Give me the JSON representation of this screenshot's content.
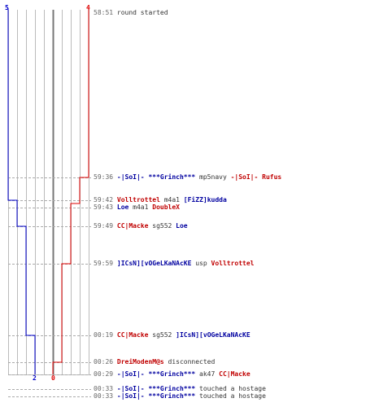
{
  "scores": {
    "top_blue": "5",
    "top_red": "4",
    "bottom_blue": "2",
    "bottom_red": "0"
  },
  "colors": {
    "blue_team": "#0000cc",
    "red_team": "#dd0000",
    "grid": "#bbbbbb",
    "dash": "#aaaaaa",
    "center": "#777777"
  },
  "events": [
    {
      "time": "58:51",
      "parts": [
        {
          "t": "round started",
          "c": "plain"
        }
      ]
    },
    {
      "time": "59:36",
      "parts": [
        {
          "t": "-|SoI|- ***Grinch***",
          "c": "blue"
        },
        {
          "t": " mp5navy ",
          "c": "plain"
        },
        {
          "t": "-|SoI|- Rufus",
          "c": "red"
        }
      ]
    },
    {
      "time": "59:42",
      "parts": [
        {
          "t": "Volltrottel",
          "c": "red"
        },
        {
          "t": " m4a1 ",
          "c": "plain"
        },
        {
          "t": "[FiZZ]kudda",
          "c": "blue"
        }
      ]
    },
    {
      "time": "59:43",
      "parts": [
        {
          "t": "Loe",
          "c": "blue"
        },
        {
          "t": " m4a1 ",
          "c": "plain"
        },
        {
          "t": "DoubleX",
          "c": "red"
        }
      ]
    },
    {
      "time": "59:49",
      "parts": [
        {
          "t": "CC|Macke",
          "c": "red"
        },
        {
          "t": " sg552 ",
          "c": "plain"
        },
        {
          "t": "Loe",
          "c": "blue"
        }
      ]
    },
    {
      "time": "59:59",
      "parts": [
        {
          "t": "]ICsN][vOGeLKaNAcKE",
          "c": "blue"
        },
        {
          "t": " usp ",
          "c": "plain"
        },
        {
          "t": "Volltrottel",
          "c": "red"
        }
      ]
    },
    {
      "time": "00:19",
      "parts": [
        {
          "t": "CC|Macke",
          "c": "red"
        },
        {
          "t": " sg552 ",
          "c": "plain"
        },
        {
          "t": "]ICsN][vOGeLKaNAcKE",
          "c": "blue"
        }
      ]
    },
    {
      "time": "00:26",
      "parts": [
        {
          "t": "DreiModenM@s",
          "c": "red"
        },
        {
          "t": " disconnected",
          "c": "plain"
        }
      ]
    },
    {
      "time": "00:29",
      "parts": [
        {
          "t": "-|SoI|- ***Grinch***",
          "c": "blue"
        },
        {
          "t": " ak47 ",
          "c": "plain"
        },
        {
          "t": "CC|Macke",
          "c": "red"
        }
      ]
    },
    {
      "time": "00:33",
      "parts": [
        {
          "t": "-|SoI|- ***Grinch***",
          "c": "blue"
        },
        {
          "t": " touched a hostage",
          "c": "plain"
        }
      ]
    },
    {
      "time": "00:33",
      "parts": [
        {
          "t": "-|SoI|- ***Grinch***",
          "c": "blue"
        },
        {
          "t": " touched a hostage",
          "c": "plain"
        }
      ]
    }
  ]
}
